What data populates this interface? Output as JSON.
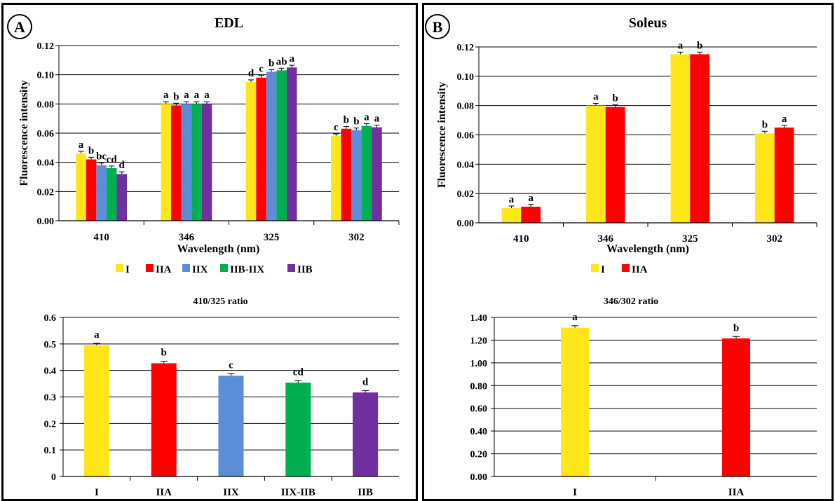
{
  "panels": [
    {
      "letter": "A",
      "top": {
        "title": "EDL",
        "ylabel": "Fluorescence intensity",
        "xlabel": "Wavelength (nm)",
        "categories": [
          "410",
          "346",
          "325",
          "302"
        ],
        "ylim": [
          0,
          0.12
        ],
        "yticks": [
          "0.00",
          "0.02",
          "0.04",
          "0.06",
          "0.08",
          "0.10",
          "0.12"
        ],
        "series": [
          {
            "name": "I",
            "color": "#FFE619",
            "values": [
              0.046,
              0.08,
              0.095,
              0.058
            ],
            "letters": [
              "a",
              "a",
              "d",
              "c"
            ]
          },
          {
            "name": "IIA",
            "color": "#FF0000",
            "values": [
              0.042,
              0.079,
              0.098,
              0.063
            ],
            "letters": [
              "b",
              "b",
              "c",
              "b"
            ]
          },
          {
            "name": "IIX",
            "color": "#5B8ED6",
            "values": [
              0.038,
              0.08,
              0.102,
              0.062
            ],
            "letters": [
              "bc",
              "a",
              "b",
              "b"
            ]
          },
          {
            "name": "IIB-IIX",
            "color": "#00B050",
            "values": [
              0.036,
              0.08,
              0.103,
              0.065
            ],
            "letters": [
              "cd",
              "a",
              "ab",
              "a"
            ]
          },
          {
            "name": "IIB",
            "color": "#7030A0",
            "values": [
              0.032,
              0.08,
              0.105,
              0.064
            ],
            "letters": [
              "d",
              "a",
              "a",
              "a"
            ]
          }
        ]
      },
      "bottom": {
        "title": "410/325 ratio",
        "categories": [
          "I",
          "IIA",
          "IIX",
          "IIX-IIB",
          "IIB"
        ],
        "values": [
          0.495,
          0.427,
          0.38,
          0.354,
          0.317
        ],
        "colors": [
          "#FFE619",
          "#FF0000",
          "#5B8ED6",
          "#00B050",
          "#7030A0"
        ],
        "letters": [
          "a",
          "b",
          "c",
          "cd",
          "d"
        ],
        "ylim": [
          0,
          0.6
        ],
        "yticks": [
          "0",
          "0.1",
          "0.2",
          "0.3",
          "0.4",
          "0.5",
          "0.6"
        ]
      }
    },
    {
      "letter": "B",
      "top": {
        "title": "Soleus",
        "ylabel": "Fluorescence intensity",
        "xlabel": "Wavelength (nm)",
        "categories": [
          "410",
          "346",
          "325",
          "302"
        ],
        "ylim": [
          0,
          0.12
        ],
        "yticks": [
          "0.00",
          "0.02",
          "0.04",
          "0.06",
          "0.08",
          "0.10",
          "0.12"
        ],
        "series": [
          {
            "name": "I",
            "color": "#FFE619",
            "values": [
              0.01,
              0.08,
              0.115,
              0.061
            ],
            "letters": [
              "a",
              "a",
              "a",
              "b"
            ]
          },
          {
            "name": "IIA",
            "color": "#FF0000",
            "values": [
              0.011,
              0.079,
              0.115,
              0.065
            ],
            "letters": [
              "a",
              "b",
              "b",
              "a"
            ]
          }
        ]
      },
      "bottom": {
        "title": "346/302 ratio",
        "categories": [
          "I",
          "IIA"
        ],
        "values": [
          1.31,
          1.215
        ],
        "colors": [
          "#FFE619",
          "#FF0000"
        ],
        "letters": [
          "a",
          "b"
        ],
        "ylim": [
          0,
          1.4
        ],
        "yticks": [
          "0.00",
          "0.20",
          "0.40",
          "0.60",
          "0.80",
          "1.00",
          "1.20",
          "1.40"
        ]
      }
    }
  ],
  "chart_data": [
    {
      "type": "bar",
      "title": "EDL",
      "xlabel": "Wavelength (nm)",
      "ylabel": "Fluorescence intensity",
      "categories": [
        "410",
        "346",
        "325",
        "302"
      ],
      "ylim": [
        0,
        0.12
      ],
      "series": [
        {
          "name": "I",
          "values": [
            0.046,
            0.08,
            0.095,
            0.058
          ]
        },
        {
          "name": "IIA",
          "values": [
            0.042,
            0.079,
            0.098,
            0.063
          ]
        },
        {
          "name": "IIX",
          "values": [
            0.038,
            0.08,
            0.102,
            0.062
          ]
        },
        {
          "name": "IIB-IIX",
          "values": [
            0.036,
            0.08,
            0.103,
            0.065
          ]
        },
        {
          "name": "IIB",
          "values": [
            0.032,
            0.08,
            0.105,
            0.064
          ]
        }
      ],
      "legend": "bottom",
      "grid": true
    },
    {
      "type": "bar",
      "title": "410/325 ratio",
      "categories": [
        "I",
        "IIA",
        "IIX",
        "IIX-IIB",
        "IIB"
      ],
      "values": [
        0.495,
        0.427,
        0.38,
        0.354,
        0.317
      ],
      "ylim": [
        0,
        0.6
      ],
      "grid": true
    },
    {
      "type": "bar",
      "title": "Soleus",
      "xlabel": "Wavelength (nm)",
      "ylabel": "Fluorescence intensity",
      "categories": [
        "410",
        "346",
        "325",
        "302"
      ],
      "ylim": [
        0,
        0.12
      ],
      "series": [
        {
          "name": "I",
          "values": [
            0.01,
            0.08,
            0.115,
            0.061
          ]
        },
        {
          "name": "IIA",
          "values": [
            0.011,
            0.079,
            0.115,
            0.065
          ]
        }
      ],
      "legend": "bottom",
      "grid": true
    },
    {
      "type": "bar",
      "title": "346/302 ratio",
      "categories": [
        "I",
        "IIA"
      ],
      "values": [
        1.31,
        1.215
      ],
      "ylim": [
        0,
        1.4
      ],
      "grid": true
    }
  ]
}
